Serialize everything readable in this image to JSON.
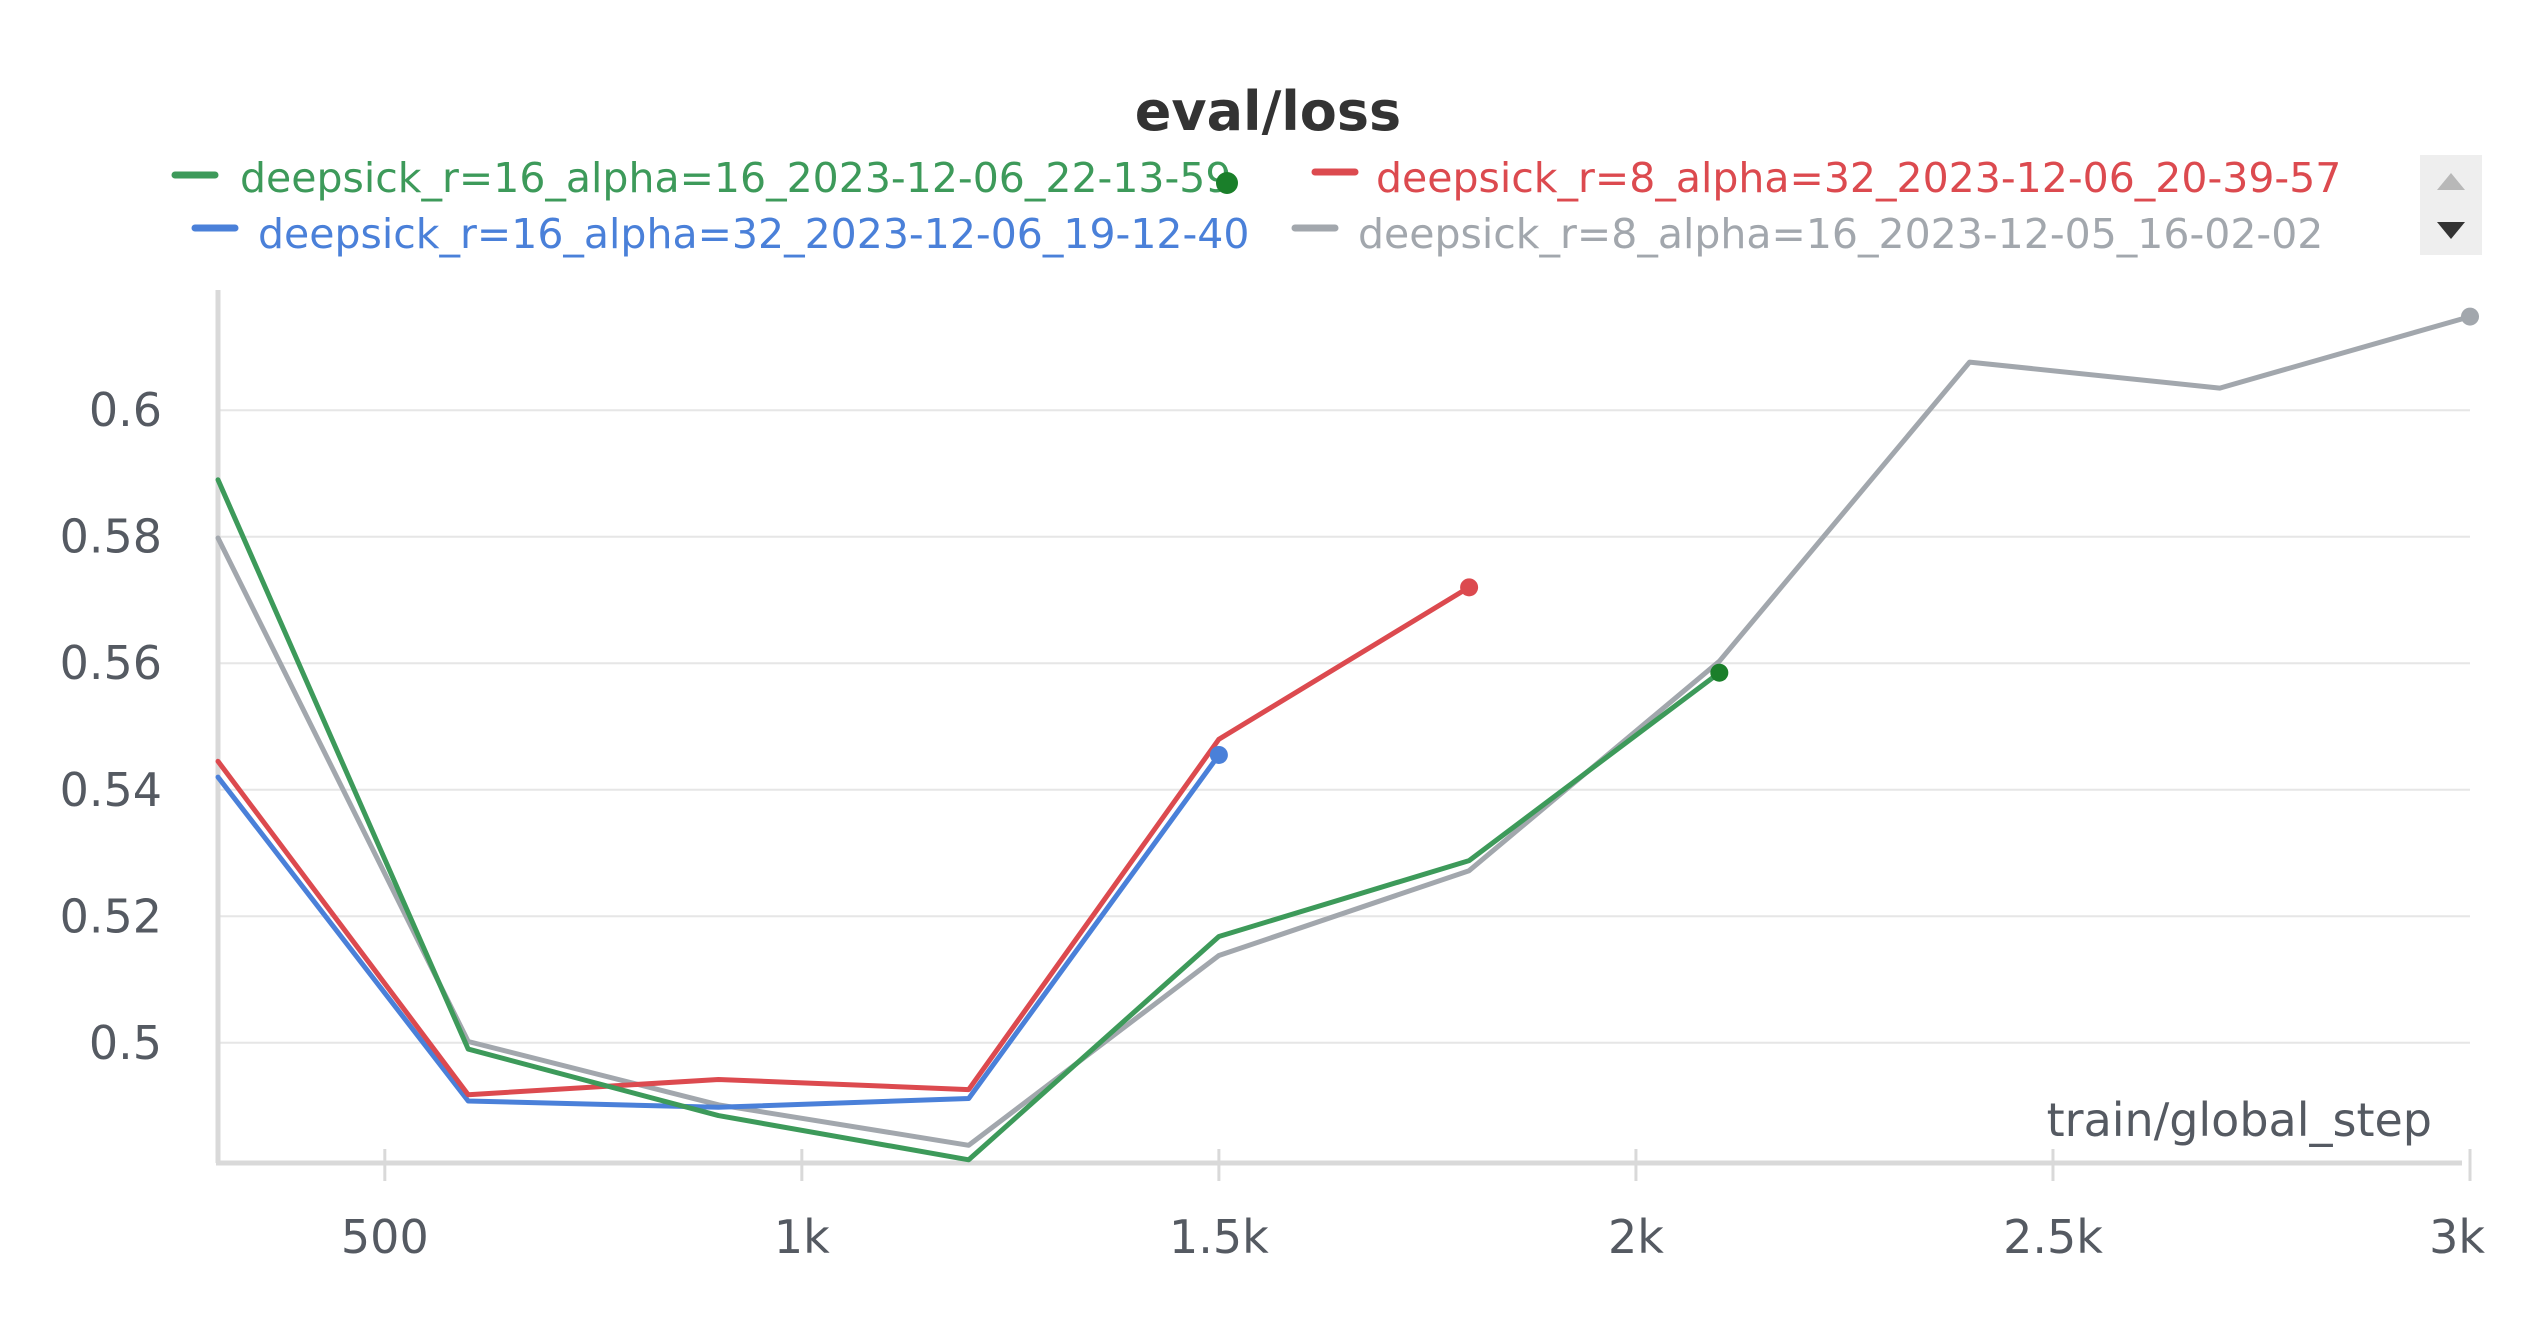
{
  "chart_data": {
    "type": "line",
    "title": "eval/loss",
    "xlabel": "train/global_step",
    "ylabel": "",
    "xlim": [
      300,
      3000
    ],
    "ylim": [
      0.481,
      0.619
    ],
    "x_ticks": [
      {
        "value": 500,
        "label": "500"
      },
      {
        "value": 1000,
        "label": "1k"
      },
      {
        "value": 1500,
        "label": "1.5k"
      },
      {
        "value": 2000,
        "label": "2k"
      },
      {
        "value": 2500,
        "label": "2.5k"
      },
      {
        "value": 3000,
        "label": "3k"
      }
    ],
    "y_ticks": [
      {
        "value": 0.5,
        "label": "0.5"
      },
      {
        "value": 0.52,
        "label": "0.52"
      },
      {
        "value": 0.54,
        "label": "0.54"
      },
      {
        "value": 0.56,
        "label": "0.56"
      },
      {
        "value": 0.58,
        "label": "0.58"
      },
      {
        "value": 0.6,
        "label": "0.6"
      }
    ],
    "grid": true,
    "legend_position": "top",
    "series": [
      {
        "name": "deepsick_r=16_alpha=16_2023-12-06_22-13-59",
        "color": "#3d9a5a",
        "marker_color": "#1a7f2a",
        "x": [
          300,
          600,
          900,
          1200,
          1500,
          1800,
          2100
        ],
        "y": [
          0.589,
          0.499,
          0.4885,
          0.4815,
          0.5168,
          0.5288,
          0.5585
        ]
      },
      {
        "name": "deepsick_r=8_alpha=32_2023-12-06_20-39-57",
        "color": "#dc4a4f",
        "marker_color": "#dc4a4f",
        "x": [
          300,
          600,
          900,
          1200,
          1500,
          1800
        ],
        "y": [
          0.5445,
          0.4918,
          0.4942,
          0.4926,
          0.548,
          0.572
        ]
      },
      {
        "name": "deepsick_r=16_alpha=32_2023-12-06_19-12-40",
        "color": "#4a80d9",
        "marker_color": "#4a80d9",
        "x": [
          300,
          600,
          900,
          1200,
          1500
        ],
        "y": [
          0.542,
          0.4908,
          0.4898,
          0.4912,
          0.5455
        ]
      },
      {
        "name": "deepsick_r=8_alpha=16_2023-12-05_16-02-02",
        "color": "#a2a7ad",
        "marker_color": "#a2a7ad",
        "x": [
          300,
          600,
          900,
          1200,
          1500,
          1800,
          2100,
          2400,
          2700,
          3000
        ],
        "y": [
          0.5798,
          0.5002,
          0.4902,
          0.4838,
          0.5138,
          0.5272,
          0.5603,
          0.6076,
          0.6035,
          0.6148
        ]
      }
    ]
  },
  "legend": {
    "entries": [
      {
        "label": "deepsick_r=16_alpha=16_2023-12-06_22-13-59",
        "color": "#3d9a5a",
        "dot_color": "#1a7f2a"
      },
      {
        "label": "deepsick_r=8_alpha=32_2023-12-06_20-39-57",
        "color": "#dc4a4f"
      },
      {
        "label": "deepsick_r=16_alpha=32_2023-12-06_19-12-40",
        "color": "#4a80d9"
      },
      {
        "label": "deepsick_r=8_alpha=16_2023-12-05_16-02-02",
        "color": "#a2a7ad"
      }
    ],
    "scroll_up_icon": "triangle-up-icon",
    "scroll_down_icon": "triangle-down-icon"
  }
}
